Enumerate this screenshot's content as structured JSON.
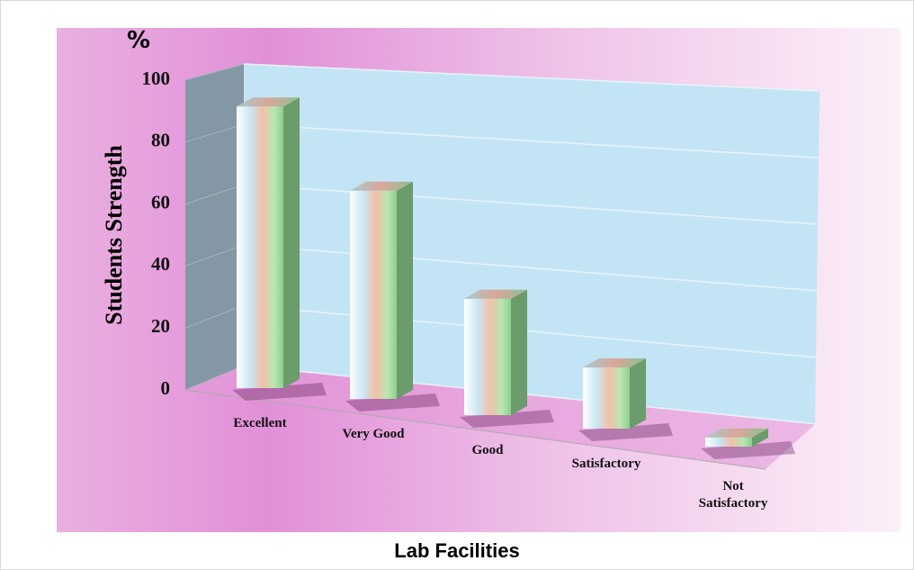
{
  "chart_data": {
    "type": "bar3d",
    "title": "Lab Facilities",
    "ylabel": "Students Strength",
    "unit": "%",
    "categories": [
      "Excellent",
      "Very Good",
      "Good",
      "Satisfactory",
      "Not Satisfactory"
    ],
    "values": [
      92,
      68,
      38,
      20,
      3
    ],
    "ylim": [
      0,
      100
    ],
    "yticks": [
      0,
      20,
      40,
      60,
      80,
      100
    ],
    "grid": true
  }
}
